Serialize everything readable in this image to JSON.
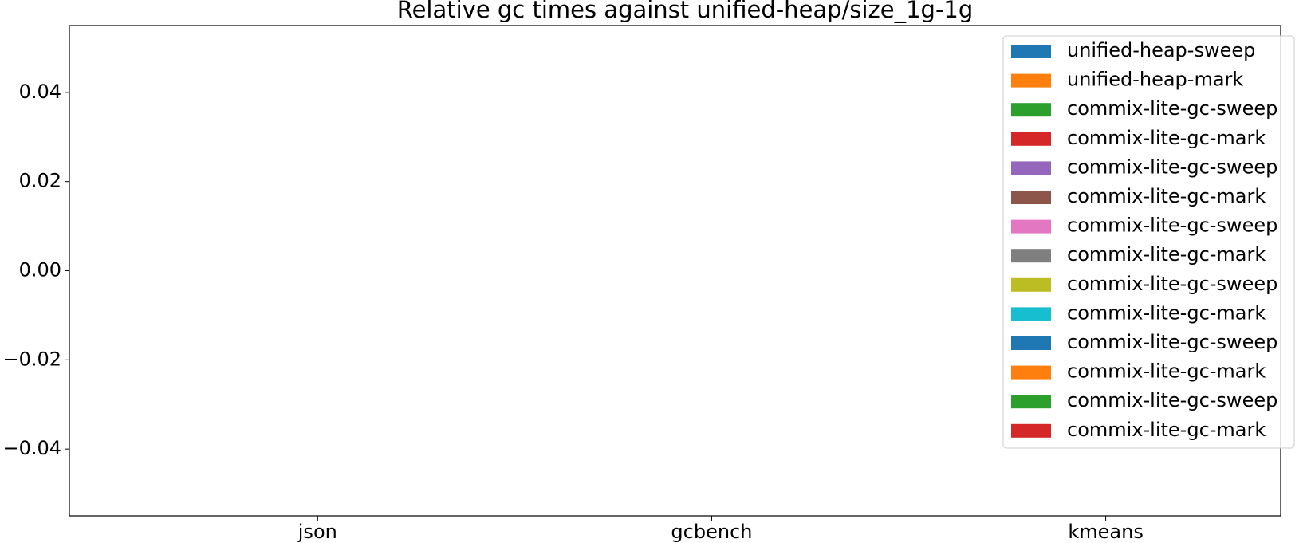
{
  "chart_data": {
    "type": "bar",
    "title": "Relative gc times against unified-heap/size_1g-1g",
    "categories": [
      "json",
      "gcbench",
      "kmeans"
    ],
    "series": [
      {
        "name": "unified-heap-sweep",
        "color": "#1f77b4",
        "values": [
          null,
          null,
          null
        ]
      },
      {
        "name": "unified-heap-mark",
        "color": "#ff7f0e",
        "values": [
          null,
          null,
          null
        ]
      },
      {
        "name": "commix-lite-gc-sweep",
        "color": "#2ca02c",
        "values": [
          null,
          null,
          null
        ]
      },
      {
        "name": "commix-lite-gc-mark",
        "color": "#d62728",
        "values": [
          null,
          null,
          null
        ]
      },
      {
        "name": "commix-lite-gc-sweep",
        "color": "#9467bd",
        "values": [
          null,
          null,
          null
        ]
      },
      {
        "name": "commix-lite-gc-mark",
        "color": "#8c564b",
        "values": [
          null,
          null,
          null
        ]
      },
      {
        "name": "commix-lite-gc-sweep",
        "color": "#e377c2",
        "values": [
          null,
          null,
          null
        ]
      },
      {
        "name": "commix-lite-gc-mark",
        "color": "#7f7f7f",
        "values": [
          null,
          null,
          null
        ]
      },
      {
        "name": "commix-lite-gc-sweep",
        "color": "#bcbd22",
        "values": [
          null,
          null,
          null
        ]
      },
      {
        "name": "commix-lite-gc-mark",
        "color": "#17becf",
        "values": [
          null,
          null,
          null
        ]
      },
      {
        "name": "commix-lite-gc-sweep",
        "color": "#1f77b4",
        "values": [
          null,
          null,
          null
        ]
      },
      {
        "name": "commix-lite-gc-mark",
        "color": "#ff7f0e",
        "values": [
          null,
          null,
          null
        ]
      },
      {
        "name": "commix-lite-gc-sweep",
        "color": "#2ca02c",
        "values": [
          null,
          null,
          null
        ]
      },
      {
        "name": "commix-lite-gc-mark",
        "color": "#d62728",
        "values": [
          null,
          null,
          null
        ]
      }
    ],
    "ylim": [
      -0.055,
      0.055
    ],
    "yticks": [
      {
        "value": -0.04,
        "label": "−0.04"
      },
      {
        "value": -0.02,
        "label": "−0.02"
      },
      {
        "value": 0,
        "label": "0.00"
      },
      0.02,
      0.04
    ],
    "legend": "upper right"
  }
}
